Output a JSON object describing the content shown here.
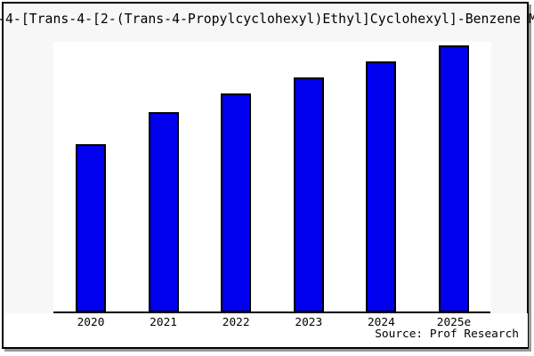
{
  "title": "-4-[Trans-4-[2-(Trans-4-Propylcyclohexyl)Ethyl]Cyclohexyl]-Benzene M",
  "source": "Source: Prof Research",
  "colors": {
    "bar_fill": "#0000EE",
    "bar_border": "#000000",
    "frame_background": "#f7f7f7",
    "plot_background": "#ffffff",
    "axis": "#000000",
    "frame_border": "#000000",
    "frame_shadow": "#999999",
    "text": "#000000"
  },
  "chart_data": {
    "type": "bar",
    "title": "-4-[Trans-4-[2-(Trans-4-Propylcyclohexyl)Ethyl]Cyclohexyl]-Benzene M",
    "title_note": "title is clipped at left and right image edges",
    "categories": [
      "2020",
      "2021",
      "2022",
      "2023",
      "2024",
      "2025e"
    ],
    "values": [
      63,
      75,
      82,
      88,
      94,
      100
    ],
    "values_note": "y-axis has no scale or tick labels; values are relative heights normalized to 2025e = 100",
    "series_count": 1,
    "xlabel": "",
    "ylabel": "",
    "ylim": [
      0,
      100
    ],
    "grid": false,
    "legend": false,
    "y_axis_visible": false,
    "annotation": "Source: Prof Research"
  }
}
